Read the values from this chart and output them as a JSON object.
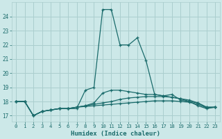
{
  "xlabel": "Humidex (Indice chaleur)",
  "xlim": [
    -0.5,
    23.5
  ],
  "ylim": [
    16.6,
    25.0
  ],
  "yticks": [
    17,
    18,
    19,
    20,
    21,
    22,
    23,
    24
  ],
  "xticks": [
    0,
    1,
    2,
    3,
    4,
    5,
    6,
    7,
    8,
    9,
    10,
    11,
    12,
    13,
    14,
    15,
    16,
    17,
    18,
    19,
    20,
    21,
    22,
    23
  ],
  "bg_color": "#cce8e8",
  "grid_color": "#aacece",
  "line_color": "#1a6b6b",
  "series": [
    [
      18.0,
      18.0,
      17.0,
      17.3,
      17.4,
      17.5,
      17.5,
      17.5,
      18.8,
      19.0,
      24.5,
      24.5,
      22.0,
      22.0,
      22.5,
      20.9,
      18.5,
      18.4,
      18.5,
      18.1,
      18.0,
      17.7,
      17.5,
      17.6
    ],
    [
      18.0,
      18.0,
      17.0,
      17.3,
      17.4,
      17.5,
      17.5,
      17.6,
      17.7,
      17.9,
      18.6,
      18.8,
      18.8,
      18.7,
      18.6,
      18.5,
      18.5,
      18.4,
      18.3,
      18.2,
      18.1,
      17.9,
      17.6,
      17.6
    ],
    [
      18.0,
      18.0,
      17.0,
      17.3,
      17.4,
      17.5,
      17.5,
      17.6,
      17.7,
      17.8,
      17.9,
      18.0,
      18.15,
      18.25,
      18.3,
      18.35,
      18.35,
      18.35,
      18.3,
      18.2,
      18.0,
      17.9,
      17.6,
      17.6
    ],
    [
      18.0,
      18.0,
      17.0,
      17.3,
      17.4,
      17.5,
      17.5,
      17.6,
      17.65,
      17.7,
      17.75,
      17.8,
      17.85,
      17.9,
      17.95,
      18.0,
      18.05,
      18.05,
      18.05,
      18.0,
      17.95,
      17.8,
      17.55,
      17.6
    ]
  ]
}
